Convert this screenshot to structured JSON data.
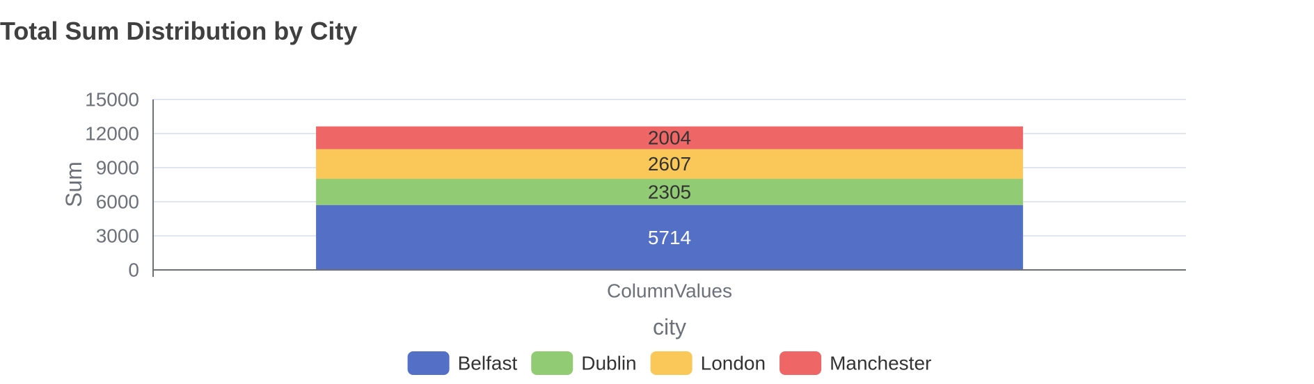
{
  "chart_data": {
    "type": "bar",
    "stacked": true,
    "title": "Total Sum Distribution by City",
    "xlabel": "city",
    "ylabel": "Sum",
    "categories": [
      "ColumnValues"
    ],
    "ylim": [
      0,
      15000
    ],
    "yticks": [
      "0",
      "3000",
      "6000",
      "9000",
      "12000",
      "15000"
    ],
    "ytick_values": [
      0,
      3000,
      6000,
      9000,
      12000,
      15000
    ],
    "grid": true,
    "legend": "bottom",
    "series": [
      {
        "name": "Belfast",
        "values": [
          5714
        ],
        "color": "#5470c6",
        "label_color": "#ffffff"
      },
      {
        "name": "Dublin",
        "values": [
          2305
        ],
        "color": "#91cc75",
        "label_color": "#333333"
      },
      {
        "name": "London",
        "values": [
          2607
        ],
        "color": "#fac858",
        "label_color": "#333333"
      },
      {
        "name": "Manchester",
        "values": [
          2004
        ],
        "color": "#ee6666",
        "label_color": "#333333"
      }
    ]
  }
}
